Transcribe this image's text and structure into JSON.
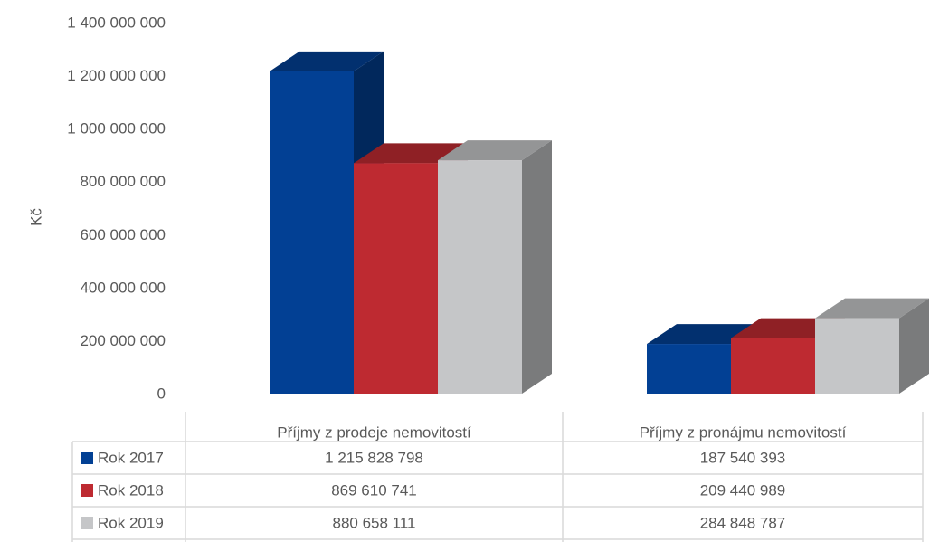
{
  "chart_data": {
    "type": "bar",
    "ylabel": "Kč",
    "ylim": [
      0,
      1400000000
    ],
    "yticks": [
      0,
      200000000,
      400000000,
      600000000,
      800000000,
      1000000000,
      1200000000,
      1400000000
    ],
    "ytick_labels": [
      "0",
      "200 000 000",
      "400 000 000",
      "600 000 000",
      "800 000 000",
      "1 000 000 000",
      "1 200 000 000",
      "1 400 000 000"
    ],
    "categories": [
      "Příjmy z prodeje nemovitostí",
      "Příjmy z pronájmu nemovitostí"
    ],
    "series": [
      {
        "name": "Rok 2017",
        "values": [
          1215828798,
          187540393
        ],
        "value_labels": [
          "1 215 828 798",
          "187 540 393"
        ],
        "color": "#024094"
      },
      {
        "name": "Rok 2018",
        "values": [
          869610741,
          209440989
        ],
        "value_labels": [
          "869 610 741",
          "209 440 989"
        ],
        "color": "#BE2A31"
      },
      {
        "name": "Rok 2019",
        "values": [
          880658111,
          284848787
        ],
        "value_labels": [
          "880 658 111",
          "284 848 787"
        ],
        "color": "#C5C6C8"
      }
    ],
    "data_table": true,
    "grid": false,
    "bar_3d": true
  }
}
